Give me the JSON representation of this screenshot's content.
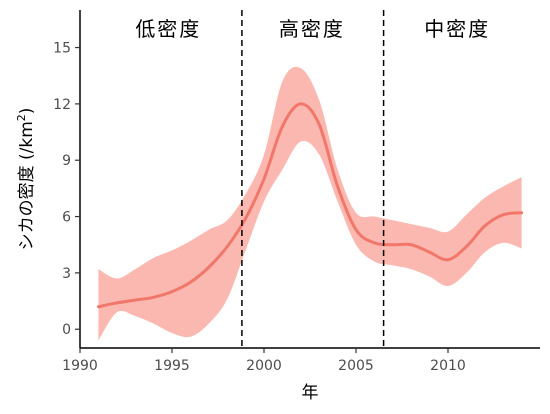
{
  "chart_data": {
    "type": "line",
    "xlabel": "年",
    "ylabel": "シカの密度 (/km",
    "ylabel_sup": "2",
    "ylabel_close": ")",
    "xlim": [
      1990,
      2015
    ],
    "ylim": [
      -1,
      17
    ],
    "x_ticks": [
      1990,
      1995,
      2000,
      2005,
      2010
    ],
    "y_ticks": [
      0,
      3,
      6,
      9,
      12,
      15
    ],
    "x_tick_labels": [
      "1990",
      "1995",
      "2000",
      "2005",
      "2010"
    ],
    "y_tick_labels": [
      "0",
      "3",
      "6",
      "9",
      "12",
      "15"
    ],
    "grid": false,
    "line_color": "#f0776a",
    "band_color": "#fbb8b0",
    "series": [
      {
        "x": [
          1991,
          1992,
          1993,
          1994,
          1995,
          1996,
          1997,
          1998,
          1999,
          2000,
          2001,
          2002,
          2003,
          2004,
          2005,
          2006,
          2007,
          2008,
          2009,
          2010,
          2011,
          2012,
          2013,
          2014
        ],
        "y": [
          1.2,
          1.4,
          1.55,
          1.7,
          2.0,
          2.5,
          3.3,
          4.4,
          5.9,
          8.0,
          10.8,
          12.0,
          10.9,
          7.6,
          5.3,
          4.6,
          4.5,
          4.5,
          4.1,
          3.7,
          4.4,
          5.5,
          6.1,
          6.2
        ],
        "lower": [
          -0.6,
          0.9,
          0.7,
          0.3,
          -0.2,
          -0.4,
          0.3,
          1.6,
          4.2,
          6.8,
          8.5,
          10.0,
          9.3,
          6.8,
          4.5,
          3.6,
          3.4,
          3.2,
          2.8,
          2.3,
          3.0,
          4.1,
          4.6,
          4.3
        ],
        "upper": [
          3.2,
          2.7,
          3.2,
          3.8,
          4.2,
          4.7,
          5.3,
          5.8,
          7.2,
          9.3,
          13.2,
          13.9,
          12.2,
          8.5,
          6.2,
          6.0,
          5.8,
          5.6,
          5.4,
          5.2,
          6.1,
          7.0,
          7.6,
          8.1
        ]
      }
    ],
    "period_dividers": [
      1998.8,
      2006.5
    ],
    "periods": [
      {
        "label": "低密度",
        "center": 1994.8
      },
      {
        "label": "高密度",
        "center": 2002.6
      },
      {
        "label": "中密度",
        "center": 2010.5
      }
    ]
  }
}
